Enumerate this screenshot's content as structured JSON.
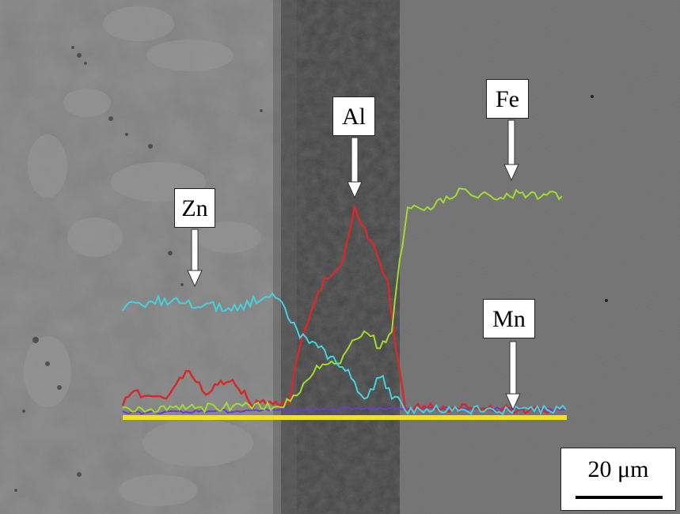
{
  "labels": {
    "zn": "Zn",
    "al": "Al",
    "fe": "Fe",
    "mn": "Mn"
  },
  "scale_bar": {
    "text": "20 μm"
  },
  "colors": {
    "zn": "#43d3de",
    "al": "#d42a2a",
    "fe": "#9fdc2e",
    "mn": "#6a3cc8",
    "scan_line": "#f2e21a",
    "arrow": "#ffffff"
  },
  "icons": {
    "arrow": "down-arrow-icon"
  }
}
